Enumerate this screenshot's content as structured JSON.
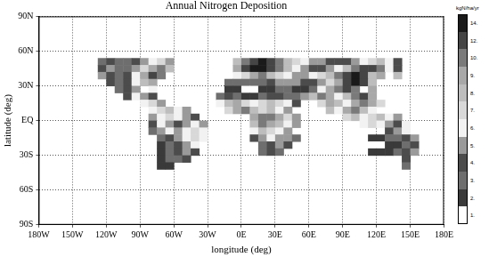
{
  "chart_data": {
    "type": "heatmap",
    "title": "Annual Nitrogen Deposition",
    "x_label": "longitude (deg)",
    "y_label": "latitude (deg)",
    "xlim": [
      -180,
      180
    ],
    "ylim": [
      -90,
      90
    ],
    "xticks": [
      {
        "value": -180,
        "label": "180W"
      },
      {
        "value": -150,
        "label": "150W"
      },
      {
        "value": -120,
        "label": "120W"
      },
      {
        "value": -90,
        "label": "90W"
      },
      {
        "value": -60,
        "label": "60W"
      },
      {
        "value": -30,
        "label": "30W"
      },
      {
        "value": 0,
        "label": "0E"
      },
      {
        "value": 30,
        "label": "30E"
      },
      {
        "value": 60,
        "label": "60E"
      },
      {
        "value": 90,
        "label": "90E"
      },
      {
        "value": 120,
        "label": "120E"
      },
      {
        "value": 150,
        "label": "150E"
      },
      {
        "value": 180,
        "label": "180E"
      }
    ],
    "yticks": [
      {
        "value": -90,
        "label": "90S"
      },
      {
        "value": -60,
        "label": "60S"
      },
      {
        "value": -30,
        "label": "30S"
      },
      {
        "value": 0,
        "label": "EQ"
      },
      {
        "value": 30,
        "label": "30N"
      },
      {
        "value": 60,
        "label": "60N"
      },
      {
        "value": 90,
        "label": "90N"
      }
    ],
    "grid": true,
    "cell_size": [
      7.5,
      6
    ],
    "cells": [
      {
        "lat": 48,
        "lon0": -127.5,
        "values": [
          3,
          4,
          3,
          3,
          4,
          5,
          6,
          7,
          5
        ]
      },
      {
        "lat": 48,
        "lon0": -7.5,
        "values": [
          8,
          10,
          12,
          14,
          12,
          10,
          8,
          7,
          6,
          5,
          5,
          4,
          4,
          4,
          5,
          6,
          7,
          8,
          6,
          4
        ]
      },
      {
        "lat": 42,
        "lon0": -127.5,
        "values": [
          4,
          5,
          3,
          3,
          5,
          7,
          9,
          10,
          8
        ]
      },
      {
        "lat": 42,
        "lon0": -7.5,
        "values": [
          9,
          12,
          14,
          14,
          12,
          10,
          8,
          6,
          5,
          4,
          4,
          5,
          6,
          8,
          10,
          12,
          13,
          10,
          6,
          4
        ]
      },
      {
        "lat": 36,
        "lon0": -127.5,
        "values": [
          5,
          4,
          3,
          4,
          6,
          9,
          12,
          11
        ]
      },
      {
        "lat": 36,
        "lon0": -7.5,
        "values": [
          6,
          7,
          9,
          10,
          8,
          7,
          6,
          5,
          5,
          6,
          7,
          8,
          10,
          13,
          14,
          12,
          8,
          9
        ]
      },
      {
        "lat": 36,
        "lon0": 135,
        "values": [
          8
        ]
      },
      {
        "lat": 30,
        "lon0": -120,
        "values": [
          4,
          3,
          4,
          6,
          8,
          9
        ]
      },
      {
        "lat": 30,
        "lon0": -15,
        "values": [
          3,
          3,
          3,
          3,
          3,
          4,
          5,
          5,
          5,
          4,
          4,
          5,
          7,
          9,
          12,
          14,
          12,
          8
        ]
      },
      {
        "lat": 24,
        "lon0": -112.5,
        "values": [
          3,
          4,
          5
        ]
      },
      {
        "lat": 24,
        "lon0": -82.5,
        "values": [
          6
        ]
      },
      {
        "lat": 24,
        "lon0": -15,
        "values": [
          2,
          2,
          1,
          1,
          2,
          2,
          3,
          3,
          2,
          2,
          3,
          6,
          9,
          10,
          12,
          10
        ]
      },
      {
        "lat": 24,
        "lon0": 112.5,
        "values": [
          9
        ]
      },
      {
        "lat": 18,
        "lon0": -105,
        "values": [
          4,
          6,
          5,
          4
        ]
      },
      {
        "lat": 18,
        "lon0": -22.5,
        "values": [
          3,
          4,
          3,
          2,
          2,
          3,
          4,
          4,
          3,
          3,
          5,
          8,
          10,
          9,
          6,
          8,
          10,
          12,
          9
        ]
      },
      {
        "lat": 12,
        "lon0": -90,
        "values": [
          6,
          7,
          5
        ]
      },
      {
        "lat": 12,
        "lon0": -22.5,
        "values": [
          6,
          8,
          9,
          7,
          6,
          7,
          8,
          7,
          6,
          4
        ]
      },
      {
        "lat": 12,
        "lon0": 67.5,
        "values": [
          7,
          9,
          8,
          6,
          9,
          10,
          9,
          7
        ]
      },
      {
        "lat": 6,
        "lon0": -82.5,
        "values": [
          6,
          7,
          8,
          6,
          5
        ]
      },
      {
        "lat": 6,
        "lon0": -15,
        "values": [
          7,
          9,
          10,
          8,
          7,
          8,
          6,
          5
        ]
      },
      {
        "lat": 6,
        "lon0": 75,
        "values": [
          8,
          6,
          9,
          10,
          8,
          6
        ]
      },
      {
        "lat": 0,
        "lon0": -82.5,
        "values": [
          5,
          6,
          7,
          6,
          5,
          4
        ]
      },
      {
        "lat": 0,
        "lon0": 7.5,
        "values": [
          9,
          10,
          11,
          9,
          7,
          5
        ]
      },
      {
        "lat": 0,
        "lon0": 90,
        "values": [
          7,
          8,
          6,
          7,
          8,
          6,
          5
        ]
      },
      {
        "lat": -6,
        "lon0": -82.5,
        "values": [
          4,
          6,
          5,
          4,
          5,
          6,
          5
        ]
      },
      {
        "lat": -6,
        "lon0": 7.5,
        "values": [
          8,
          10,
          9,
          8,
          6,
          5
        ]
      },
      {
        "lat": -6,
        "lon0": 105,
        "values": [
          6,
          7,
          6,
          5,
          4,
          6
        ]
      },
      {
        "lat": -12,
        "lon0": -82.5,
        "values": [
          3,
          5,
          6,
          5,
          6,
          7,
          6
        ]
      },
      {
        "lat": -12,
        "lon0": 7.5,
        "values": [
          6,
          8,
          7,
          6,
          5
        ]
      },
      {
        "lat": -12,
        "lon0": 127.5,
        "values": [
          4,
          5,
          6
        ]
      },
      {
        "lat": -18,
        "lon0": -75,
        "values": [
          3,
          4,
          5,
          6,
          7,
          6
        ]
      },
      {
        "lat": -18,
        "lon0": 7.5,
        "values": [
          4,
          5,
          6,
          5,
          5,
          3
        ]
      },
      {
        "lat": -18,
        "lon0": 112.5,
        "values": [
          2,
          2,
          3,
          3,
          4,
          5
        ]
      },
      {
        "lat": -24,
        "lon0": -75,
        "values": [
          2,
          3,
          4,
          5,
          6
        ]
      },
      {
        "lat": -24,
        "lon0": 15,
        "values": [
          3,
          4,
          5,
          4
        ]
      },
      {
        "lat": -24,
        "lon0": 112.5,
        "values": [
          1,
          1,
          2,
          2,
          3,
          4
        ]
      },
      {
        "lat": -30,
        "lon0": -75,
        "values": [
          2,
          3,
          4,
          5,
          4
        ]
      },
      {
        "lat": -30,
        "lon0": 15,
        "values": [
          3,
          4,
          3
        ]
      },
      {
        "lat": -30,
        "lon0": 112.5,
        "values": [
          2,
          2,
          2,
          3,
          4,
          5
        ]
      },
      {
        "lat": -36,
        "lon0": -75,
        "values": [
          2,
          3,
          3,
          4
        ]
      },
      {
        "lat": -36,
        "lon0": 142.5,
        "values": [
          4
        ]
      },
      {
        "lat": -42,
        "lon0": -75,
        "values": [
          2,
          2
        ]
      },
      {
        "lat": -42,
        "lon0": 142.5,
        "values": [
          3
        ]
      }
    ],
    "colorbar": {
      "label": "kgN/ha/yr",
      "ticks": [
        {
          "value": 1,
          "label": "1."
        },
        {
          "value": 2,
          "label": "2."
        },
        {
          "value": 3,
          "label": "3."
        },
        {
          "value": 4,
          "label": "4."
        },
        {
          "value": 5,
          "label": "5."
        },
        {
          "value": 6,
          "label": "6."
        },
        {
          "value": 7,
          "label": "7."
        },
        {
          "value": 8,
          "label": "8."
        },
        {
          "value": 9,
          "label": "9."
        },
        {
          "value": 10,
          "label": "10."
        },
        {
          "value": 12,
          "label": "12."
        },
        {
          "value": 14,
          "label": "14."
        }
      ],
      "colors": [
        "#ffffff",
        "#3a3a3a",
        "#6e6e6e",
        "#4c4c4c",
        "#9a9a9a",
        "#f2f2f2",
        "#d8d8d8",
        "#bdbdbd",
        "#a8a8a8",
        "#7a7a7a",
        "#454545",
        "#1a1a1a"
      ]
    }
  }
}
